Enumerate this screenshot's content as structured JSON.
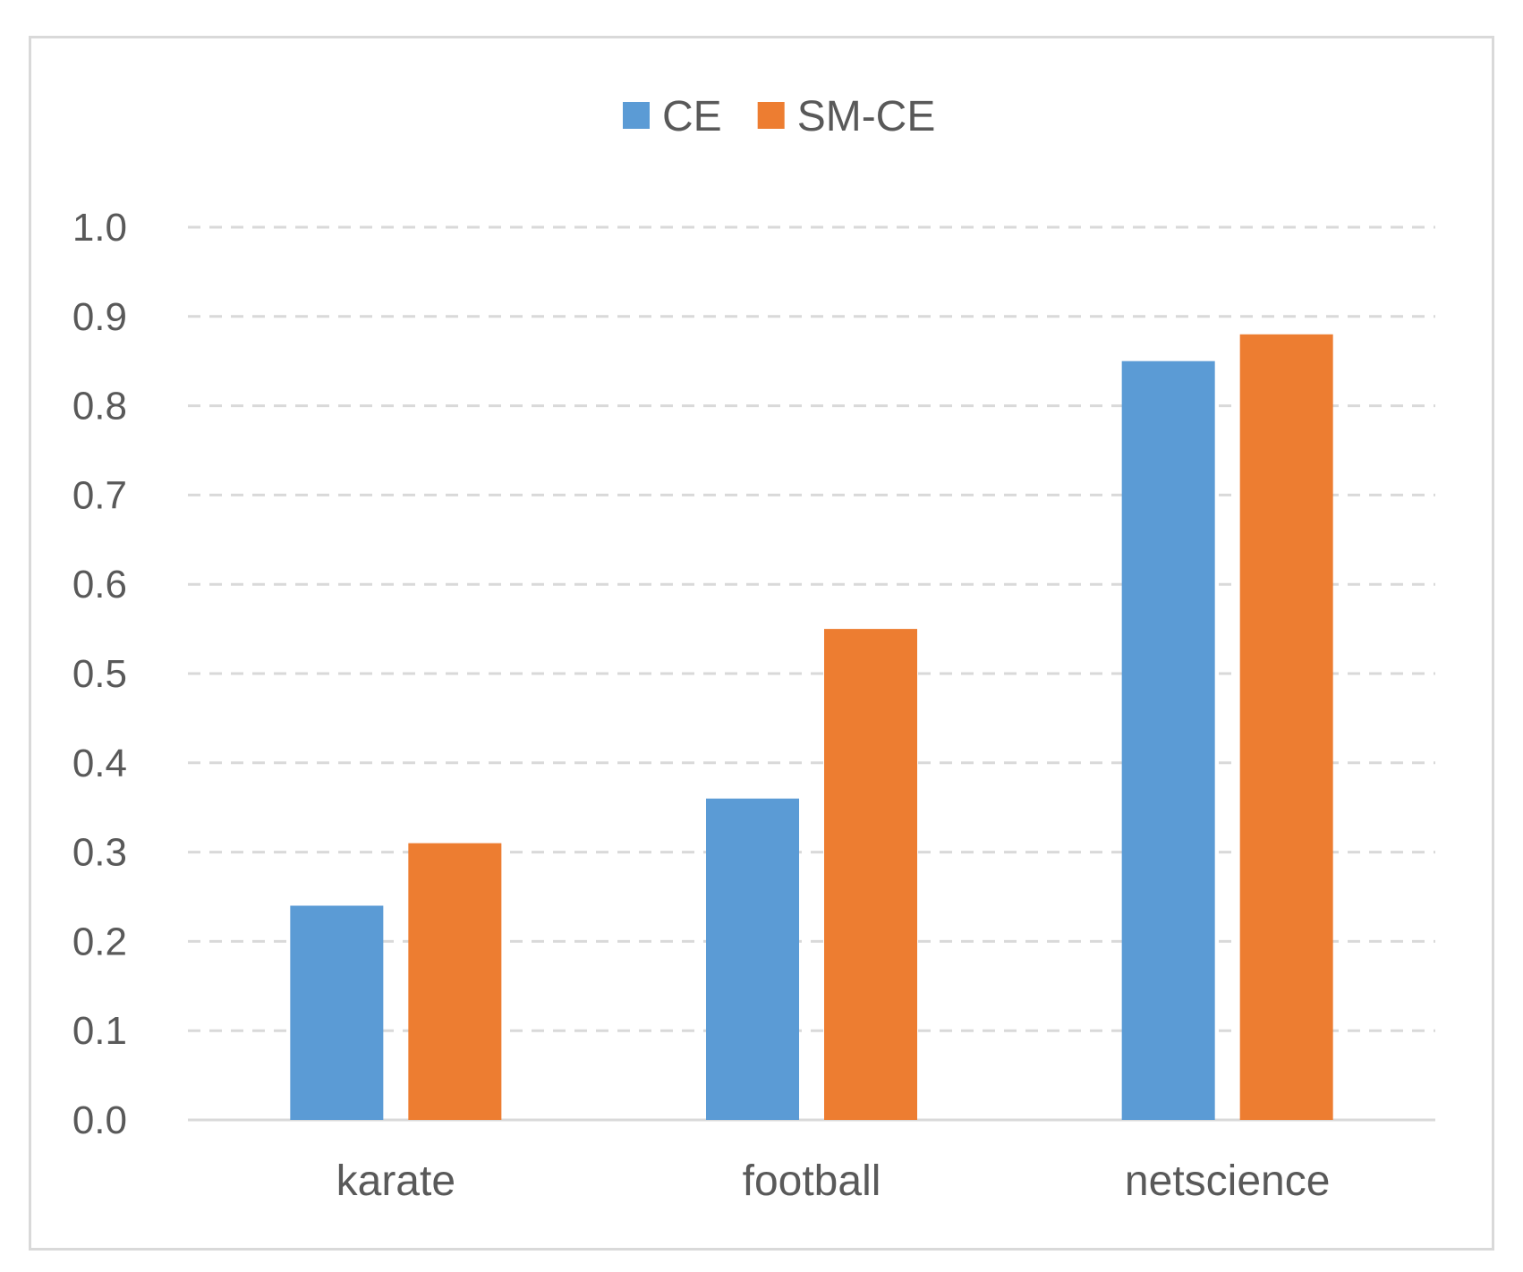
{
  "chart_data": {
    "type": "bar",
    "categories": [
      "karate",
      "football",
      "netscience"
    ],
    "series": [
      {
        "name": "CE",
        "color": "#5b9bd5",
        "values": [
          0.24,
          0.36,
          0.85
        ]
      },
      {
        "name": "SM-CE",
        "color": "#ed7d31",
        "values": [
          0.31,
          0.55,
          0.88
        ]
      }
    ],
    "title": "",
    "xlabel": "",
    "ylabel": "",
    "ylim": [
      0,
      1.0
    ],
    "yticks": [
      "0.0",
      "0.1",
      "0.2",
      "0.3",
      "0.4",
      "0.5",
      "0.6",
      "0.7",
      "0.8",
      "0.9",
      "1.0"
    ],
    "grid": "horizontal dashed",
    "legend_position": "top-center",
    "colors": {
      "grid": "#d9d9d9",
      "axis": "#d9d9d9",
      "text": "#595959",
      "frame": "#d9d9d9"
    }
  }
}
